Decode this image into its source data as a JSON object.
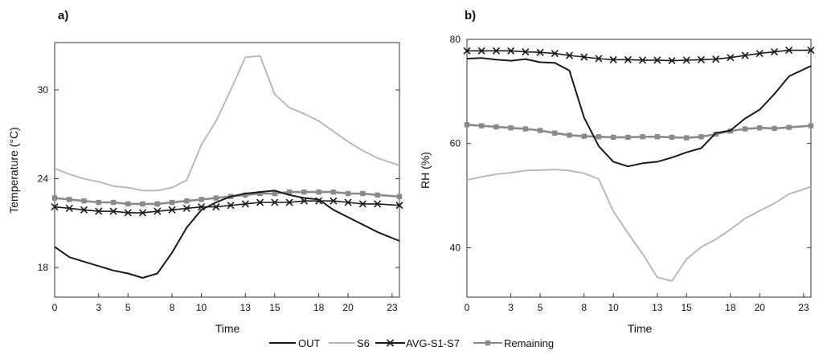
{
  "colors": {
    "OUT": "#1a1a1a",
    "S6": "#b4b4b4",
    "AVG-S1-S7": "#1a1a1a",
    "Remaining": "#8a8a8a"
  },
  "legend": [
    "OUT",
    "S6",
    "AVG-S1-S7",
    "Remaining"
  ],
  "chart_data": [
    {
      "type": "line",
      "panel_label": "a)",
      "xlabel": "Time",
      "ylabel": "Temperature (°C)",
      "xlim": [
        0,
        23.5
      ],
      "ylim": [
        16,
        33.2
      ],
      "xticks": [
        0,
        3,
        5,
        8,
        10,
        13,
        15,
        18,
        20,
        23
      ],
      "yticks": [
        18,
        24,
        30
      ],
      "series": [
        {
          "name": "OUT",
          "x": [
            0,
            1,
            2,
            3,
            4,
            5,
            6,
            7,
            8,
            9,
            10,
            11,
            12,
            13,
            14,
            15,
            16,
            17,
            18,
            19,
            20,
            21,
            22,
            23.5
          ],
          "y": [
            19.4,
            18.7,
            18.4,
            18.1,
            17.8,
            17.6,
            17.3,
            17.6,
            19.0,
            20.7,
            21.9,
            22.4,
            22.8,
            23.0,
            23.1,
            23.2,
            22.9,
            22.7,
            22.6,
            21.9,
            21.4,
            20.9,
            20.4,
            19.8
          ]
        },
        {
          "name": "S6",
          "x": [
            0,
            1,
            2,
            3,
            4,
            5,
            6,
            7,
            8,
            9,
            10,
            11,
            12,
            13,
            14,
            15,
            16,
            17,
            18,
            19,
            20,
            21,
            22,
            23.5
          ],
          "y": [
            24.7,
            24.3,
            24.0,
            23.8,
            23.5,
            23.4,
            23.2,
            23.2,
            23.4,
            23.9,
            26.3,
            27.9,
            30.0,
            32.2,
            32.3,
            29.7,
            28.8,
            28.4,
            27.9,
            27.2,
            26.5,
            25.9,
            25.4,
            24.9
          ]
        },
        {
          "name": "AVG-S1-S7",
          "x": [
            0,
            1,
            2,
            3,
            4,
            5,
            6,
            7,
            8,
            9,
            10,
            11,
            12,
            13,
            14,
            15,
            16,
            17,
            18,
            19,
            20,
            21,
            22,
            23.5
          ],
          "y": [
            22.1,
            22.0,
            21.9,
            21.8,
            21.8,
            21.7,
            21.7,
            21.8,
            21.9,
            22.0,
            22.1,
            22.1,
            22.2,
            22.3,
            22.4,
            22.4,
            22.4,
            22.5,
            22.5,
            22.5,
            22.4,
            22.3,
            22.3,
            22.2
          ]
        },
        {
          "name": "Remaining",
          "x": [
            0,
            1,
            2,
            3,
            4,
            5,
            6,
            7,
            8,
            9,
            10,
            11,
            12,
            13,
            14,
            15,
            16,
            17,
            18,
            19,
            20,
            21,
            22,
            23.5
          ],
          "y": [
            22.7,
            22.6,
            22.5,
            22.4,
            22.4,
            22.3,
            22.3,
            22.3,
            22.4,
            22.5,
            22.6,
            22.7,
            22.8,
            22.9,
            23.0,
            23.0,
            23.1,
            23.1,
            23.1,
            23.1,
            23.0,
            23.0,
            22.9,
            22.8
          ]
        }
      ]
    },
    {
      "type": "line",
      "panel_label": "b)",
      "xlabel": "Time",
      "ylabel": "RH (%)",
      "xlim": [
        0,
        23.5
      ],
      "ylim": [
        30.5,
        80
      ],
      "xticks": [
        0,
        3,
        5,
        8,
        10,
        13,
        15,
        18,
        20,
        23
      ],
      "yticks": [
        40,
        60,
        80
      ],
      "series": [
        {
          "name": "OUT",
          "x": [
            0,
            1,
            2,
            3,
            4,
            5,
            6,
            7,
            8,
            9,
            10,
            11,
            12,
            13,
            14,
            15,
            16,
            17,
            18,
            19,
            20,
            21,
            22,
            23.5
          ],
          "y": [
            76.3,
            76.4,
            76.1,
            75.9,
            76.2,
            75.6,
            75.5,
            74.0,
            65.0,
            59.5,
            56.5,
            55.6,
            56.2,
            56.5,
            57.3,
            58.3,
            59.1,
            62.0,
            62.5,
            64.8,
            66.5,
            69.5,
            72.9,
            74.9
          ]
        },
        {
          "name": "S6",
          "x": [
            0,
            1,
            2,
            3,
            4,
            5,
            6,
            7,
            8,
            9,
            10,
            11,
            12,
            13,
            14,
            15,
            16,
            17,
            18,
            19,
            20,
            21,
            22,
            23.5
          ],
          "y": [
            53.0,
            53.6,
            54.1,
            54.4,
            54.8,
            54.9,
            55.0,
            54.8,
            54.3,
            53.2,
            47.0,
            42.8,
            38.8,
            34.3,
            33.6,
            37.8,
            40.1,
            41.6,
            43.5,
            45.6,
            47.1,
            48.5,
            50.3,
            51.7
          ]
        },
        {
          "name": "AVG-S1-S7",
          "x": [
            0,
            1,
            2,
            3,
            4,
            5,
            6,
            7,
            8,
            9,
            10,
            11,
            12,
            13,
            14,
            15,
            16,
            17,
            18,
            19,
            20,
            21,
            22,
            23.5
          ],
          "y": [
            77.8,
            77.8,
            77.8,
            77.8,
            77.6,
            77.5,
            77.3,
            76.9,
            76.6,
            76.3,
            76.1,
            76.1,
            76.0,
            76.0,
            75.9,
            76.0,
            76.1,
            76.2,
            76.5,
            76.9,
            77.3,
            77.6,
            77.9,
            77.9
          ]
        },
        {
          "name": "Remaining",
          "x": [
            0,
            1,
            2,
            3,
            4,
            5,
            6,
            7,
            8,
            9,
            10,
            11,
            12,
            13,
            14,
            15,
            16,
            17,
            18,
            19,
            20,
            21,
            22,
            23.5
          ],
          "y": [
            63.6,
            63.4,
            63.2,
            63.0,
            62.8,
            62.5,
            62.0,
            61.6,
            61.4,
            61.3,
            61.2,
            61.2,
            61.3,
            61.3,
            61.2,
            61.1,
            61.3,
            61.8,
            62.4,
            62.8,
            63.0,
            62.9,
            63.1,
            63.4
          ]
        }
      ]
    }
  ]
}
